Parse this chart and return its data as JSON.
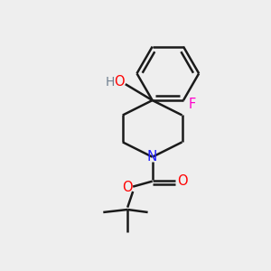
{
  "bg_color": "#eeeeee",
  "bond_color": "#1a1a1a",
  "N_color": "#2020ff",
  "O_color": "#ff0000",
  "F_color": "#ff00cc",
  "H_color": "#708090",
  "line_width": 1.8,
  "figsize": [
    3.0,
    3.0
  ],
  "dpi": 100,
  "xlim": [
    0,
    10
  ],
  "ylim": [
    0,
    10
  ]
}
